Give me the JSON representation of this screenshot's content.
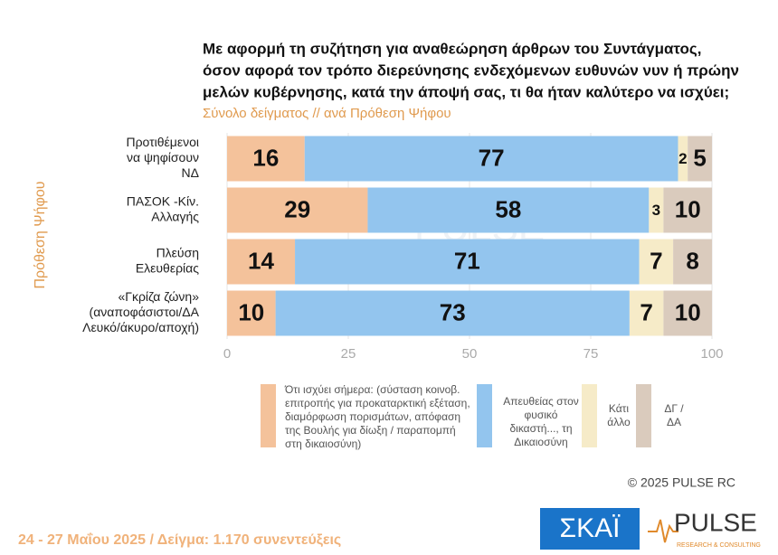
{
  "chart_data": {
    "type": "stacked-barh",
    "title": [
      "Με αφορμή τη συζήτηση για αναθεώρηση άρθρων του Συντάγματος,",
      "όσον αφορά τον τρόπο διερεύνησης ενδεχόμενων ευθυνών νυν ή πρώην",
      "μελών κυβέρνησης, κατά την άποψή σας, τι θα ήταν καλύτερο να ισχύει;"
    ],
    "subtitle": "Σύνολο δείγματος // ανά Πρόθεση Ψήφου",
    "y_label": "Πρόθεση Ψήφου",
    "categories": [
      [
        "Προτιθέμενοι",
        "να ψηφίσουν",
        "ΝΔ"
      ],
      [
        "ΠΑΣΟΚ -Κίν.",
        "Αλλαγής"
      ],
      [
        "Πλεύση",
        "Ελευθερίας"
      ],
      [
        "«Γκρίζα ζώνη»",
        "(αναποφάσιστοι/ΔΑ",
        "Λευκό/άκυρο/αποχή)"
      ]
    ],
    "series": [
      {
        "name": "Ότι ισχύει σήμερα: (σύσταση κοινοβ. επιτροπής για προκαταρκτική εξέταση, διαμόρφωση πορισμάτων, απόφαση της Βουλής για δίωξη / παραπομπή στη δικαιοσύνη)",
        "color": "#f4c29b",
        "values": [
          16,
          29,
          14,
          10
        ]
      },
      {
        "name": "Απευθείας στον φυσικό δικαστή..., τη Δικαιοσύνη",
        "color": "#93c5ee",
        "values": [
          77,
          58,
          71,
          73
        ]
      },
      {
        "name": "Κάτι άλλο",
        "color": "#f6ebc8",
        "values": [
          2,
          3,
          7,
          7
        ]
      },
      {
        "name": "ΔΓ / ΔΑ",
        "color": "#dacbbd",
        "values": [
          5,
          10,
          8,
          10
        ]
      }
    ],
    "xlim": [
      0,
      100
    ],
    "xticks": [
      0,
      25,
      50,
      75,
      100
    ],
    "grid": true
  },
  "footer": {
    "fieldwork": "24 - 27 Μαΐου 2025  /  Δείγμα:  1.170 συνεντεύξεις",
    "copyright": "©  2025  PULSE RC",
    "logo_skai": "ΣΚΑΪ",
    "logo_pulse": "PULSE",
    "logo_pulse_sub": "RESEARCH & CONSULTING"
  }
}
